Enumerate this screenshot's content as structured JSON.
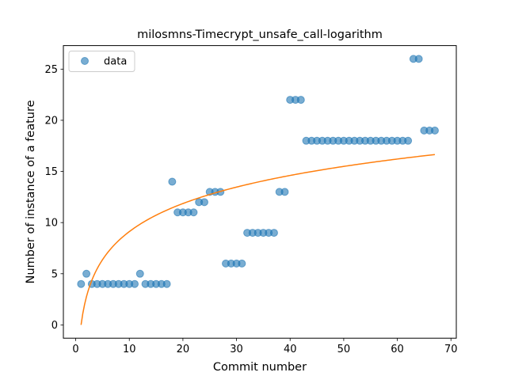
{
  "chart_data": {
    "type": "scatter",
    "title": "milosmns-Timecrypt_unsafe_call-logarithm",
    "xlabel": "Commit number",
    "ylabel": "Number of instance of a feature",
    "xlim": [
      -2.3,
      71
    ],
    "ylim": [
      -1.3,
      27.3
    ],
    "xticks": [
      0,
      10,
      20,
      30,
      40,
      50,
      60,
      70
    ],
    "yticks": [
      0,
      5,
      10,
      15,
      20,
      25
    ],
    "grid": false,
    "legend": {
      "position": "top-left",
      "entries": [
        "data"
      ]
    },
    "colors": {
      "points": "#1f77b4",
      "fit": "#ff7f0e"
    },
    "series": [
      {
        "name": "data",
        "kind": "scatter",
        "x": [
          1,
          2,
          3,
          4,
          5,
          6,
          7,
          8,
          9,
          10,
          11,
          12,
          13,
          14,
          15,
          16,
          17,
          18,
          19,
          20,
          21,
          22,
          23,
          24,
          25,
          26,
          27,
          28,
          29,
          30,
          31,
          32,
          33,
          34,
          35,
          36,
          37,
          38,
          39,
          40,
          41,
          42,
          43,
          44,
          45,
          46,
          47,
          48,
          49,
          50,
          51,
          52,
          53,
          54,
          55,
          56,
          57,
          58,
          59,
          60,
          61,
          62,
          63,
          64,
          65,
          66,
          67
        ],
        "y": [
          4,
          5,
          4,
          4,
          4,
          4,
          4,
          4,
          4,
          4,
          4,
          5,
          4,
          4,
          4,
          4,
          4,
          14,
          11,
          11,
          11,
          11,
          12,
          12,
          13,
          13,
          13,
          6,
          6,
          6,
          6,
          9,
          9,
          9,
          9,
          9,
          9,
          13,
          13,
          22,
          22,
          22,
          18,
          18,
          18,
          18,
          18,
          18,
          18,
          18,
          18,
          18,
          18,
          18,
          18,
          18,
          18,
          18,
          18,
          18,
          18,
          18,
          26,
          26,
          19,
          19,
          19
        ]
      },
      {
        "name": "",
        "kind": "line",
        "a": 3.96,
        "b": 0.0
      }
    ]
  }
}
